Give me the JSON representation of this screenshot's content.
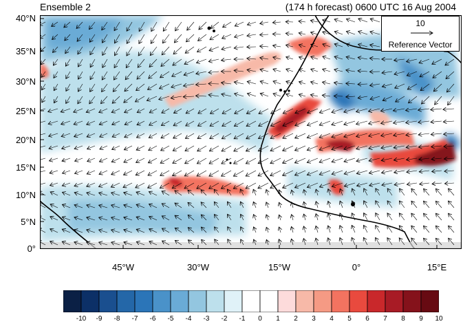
{
  "titles": {
    "left": "Ensemble 2",
    "right": "(174 h forecast) 0600 UTC 16 Aug 2004"
  },
  "map": {
    "lat_labels": [
      "40°N",
      "35°N",
      "30°N",
      "25°N",
      "20°N",
      "15°N",
      "10°N",
      "5°N",
      "0°"
    ],
    "lon_labels": [
      "45°W",
      "30°W",
      "15°W",
      "0°",
      "15°E"
    ],
    "lat_range_deg": [
      0,
      40
    ],
    "lon_range_deg": [
      -60,
      20
    ],
    "field": "shaded anomaly with wind vectors",
    "warm_features": [
      {
        "name": "coastal band",
        "lon": -15,
        "lat": 22
      },
      {
        "name": "Saharan band",
        "lon": -5,
        "lat": 18
      },
      {
        "name": "eastern maximum",
        "lon": 15,
        "lat": 17
      },
      {
        "name": "tropical Atlantic streak",
        "lon": -33,
        "lat": 11
      },
      {
        "name": "Iberia",
        "lon": -5,
        "lat": 37
      }
    ]
  },
  "reference_vector": {
    "magnitude": "10",
    "label": "Reference Vector"
  },
  "colorbar": {
    "labels": [
      "-10",
      "-9",
      "-8",
      "-7",
      "-6",
      "-5",
      "-4",
      "-3",
      "-2",
      "-1",
      "0",
      "1",
      "2",
      "3",
      "4",
      "5",
      "6",
      "7",
      "8",
      "9",
      "10"
    ],
    "colors": [
      "#0b2045",
      "#0c3067",
      "#1a4f8f",
      "#2467a8",
      "#2b75b8",
      "#4a92c9",
      "#6aabd6",
      "#93c6e0",
      "#bde0ec",
      "#e0f2f8",
      "#ffffff",
      "#ffffff",
      "#fddbdb",
      "#f7b9a8",
      "#f59a84",
      "#f37360",
      "#e94a3e",
      "#c9282b",
      "#a81b25",
      "#85121b",
      "#670a12"
    ]
  }
}
